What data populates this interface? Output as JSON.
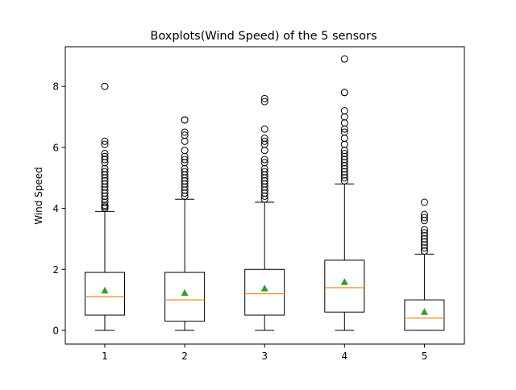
{
  "chart_data": {
    "type": "boxplot",
    "title": "Boxplots(Wind Speed) of the 5 sensors",
    "xlabel": "",
    "ylabel": "Wind Speed",
    "ylim": [
      -0.45,
      9.3
    ],
    "yticks": [
      0,
      2,
      4,
      6,
      8
    ],
    "categories": [
      "1",
      "2",
      "3",
      "4",
      "5"
    ],
    "grid": false,
    "colors": {
      "box": "#000000",
      "median": "#ff7f0e",
      "mean": "#2ca02c",
      "flier": "#000000"
    },
    "boxes": [
      {
        "label": "1",
        "whislo": 0.0,
        "q1": 0.5,
        "med": 1.1,
        "q3": 1.9,
        "whishi": 3.9,
        "mean": 1.3,
        "fliers": [
          4.0,
          4.05,
          4.1,
          4.2,
          4.3,
          4.4,
          4.5,
          4.6,
          4.7,
          4.8,
          4.9,
          5.0,
          5.1,
          5.2,
          5.3,
          5.5,
          5.6,
          5.7,
          5.8,
          6.1,
          6.2,
          8.0
        ]
      },
      {
        "label": "2",
        "whislo": 0.0,
        "q1": 0.3,
        "med": 1.0,
        "q3": 1.9,
        "whishi": 4.3,
        "mean": 1.22,
        "fliers": [
          4.4,
          4.5,
          4.6,
          4.7,
          4.8,
          4.9,
          5.0,
          5.1,
          5.2,
          5.3,
          5.5,
          5.6,
          5.7,
          5.9,
          6.2,
          6.4,
          6.5,
          6.9,
          6.9
        ]
      },
      {
        "label": "3",
        "whislo": 0.0,
        "q1": 0.5,
        "med": 1.2,
        "q3": 2.0,
        "whishi": 4.2,
        "mean": 1.37,
        "fliers": [
          4.3,
          4.4,
          4.5,
          4.6,
          4.7,
          4.8,
          4.9,
          5.0,
          5.1,
          5.2,
          5.3,
          5.5,
          5.6,
          5.9,
          6.1,
          6.2,
          6.3,
          6.6,
          7.5,
          7.6
        ]
      },
      {
        "label": "4",
        "whislo": 0.0,
        "q1": 0.6,
        "med": 1.4,
        "q3": 2.3,
        "whishi": 4.8,
        "mean": 1.58,
        "fliers": [
          4.9,
          5.0,
          5.1,
          5.2,
          5.3,
          5.4,
          5.5,
          5.6,
          5.7,
          5.8,
          5.9,
          6.1,
          6.3,
          6.5,
          6.6,
          6.8,
          7.0,
          7.2,
          7.8,
          7.8,
          8.9
        ]
      },
      {
        "label": "5",
        "whislo": 0.0,
        "q1": 0.0,
        "med": 0.4,
        "q3": 1.0,
        "whishi": 2.5,
        "mean": 0.6,
        "fliers": [
          2.6,
          2.7,
          2.8,
          2.9,
          3.0,
          3.1,
          3.2,
          3.3,
          3.6,
          3.7,
          3.8,
          4.2
        ]
      }
    ]
  }
}
